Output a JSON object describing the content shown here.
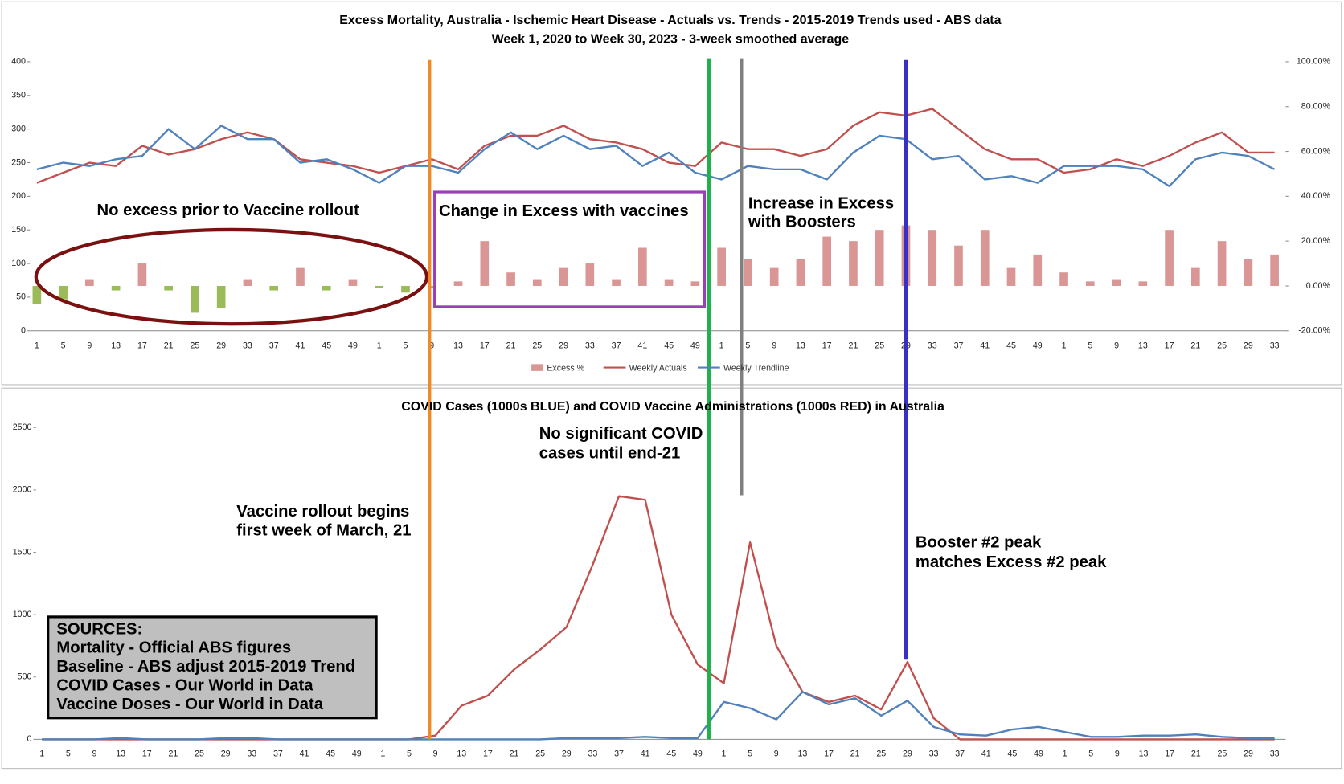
{
  "chart_data": [
    {
      "type": "combo",
      "title": [
        "Excess Mortality, Australia - Ischemic Heart Disease - Actuals vs. Trends - 2015-2019 Trends used - ABS data",
        "Week 1, 2020 to Week 30, 2023 - 3-week smoothed average"
      ],
      "categories": [
        "1",
        "5",
        "9",
        "13",
        "17",
        "21",
        "25",
        "29",
        "33",
        "37",
        "41",
        "45",
        "49",
        "1",
        "5",
        "9",
        "13",
        "17",
        "21",
        "25",
        "29",
        "33",
        "37",
        "41",
        "45",
        "49",
        "1",
        "5",
        "9",
        "13",
        "17",
        "21",
        "25",
        "29",
        "33",
        "37",
        "41",
        "45",
        "49",
        "1",
        "5",
        "9",
        "13",
        "17",
        "21",
        "25",
        "29",
        "33"
      ],
      "ylim": [
        0,
        400
      ],
      "yticks": [
        0,
        50,
        100,
        150,
        200,
        250,
        300,
        350,
        400
      ],
      "y2lim": [
        -20,
        100
      ],
      "y2ticks": [
        {
          "value": -20,
          "label": "-20.00%"
        },
        {
          "value": 0,
          "label": "0.00%"
        },
        {
          "value": 20,
          "label": "20.00%"
        },
        {
          "value": 40,
          "label": "40.00%"
        },
        {
          "value": 60,
          "label": "60.00%"
        },
        {
          "value": 80,
          "label": "80.00%"
        },
        {
          "value": 100,
          "label": "100.00%"
        }
      ],
      "series": [
        {
          "name": "Excess %",
          "type": "bar",
          "axis": "y2",
          "color": "#d99694",
          "negative_color": "#9bbb59",
          "values": [
            -8,
            -6,
            3,
            -2,
            10,
            -2,
            -12,
            -10,
            3,
            -2,
            8,
            -2,
            3,
            -1,
            -3,
            -1,
            2,
            20,
            6,
            3,
            8,
            10,
            3,
            17,
            3,
            2,
            17,
            12,
            8,
            12,
            22,
            20,
            25,
            27,
            25,
            18,
            25,
            8,
            14,
            6,
            2,
            3,
            2,
            25,
            8,
            20,
            12,
            14
          ]
        },
        {
          "name": "Weekly Actuals",
          "type": "line",
          "color": "#c0504d",
          "values": [
            220,
            235,
            250,
            245,
            275,
            262,
            270,
            285,
            295,
            285,
            255,
            250,
            245,
            235,
            245,
            255,
            240,
            275,
            290,
            290,
            305,
            285,
            280,
            270,
            250,
            245,
            280,
            270,
            270,
            260,
            270,
            305,
            325,
            320,
            330,
            300,
            270,
            255,
            255,
            235,
            240,
            255,
            245,
            260,
            280,
            295,
            265,
            265
          ]
        },
        {
          "name": "Weekly Trendline",
          "type": "line",
          "color": "#4f81bd",
          "values": [
            240,
            250,
            245,
            255,
            260,
            300,
            270,
            305,
            285,
            285,
            250,
            255,
            240,
            220,
            245,
            245,
            235,
            270,
            295,
            270,
            290,
            270,
            275,
            245,
            265,
            235,
            225,
            245,
            240,
            240,
            225,
            265,
            290,
            285,
            255,
            260,
            225,
            230,
            220,
            245,
            245,
            245,
            240,
            215,
            255,
            265,
            260,
            240
          ]
        }
      ],
      "annotations": [
        "No excess prior to Vaccine rollout",
        "Change in Excess with vaccines",
        "Increase in Excess",
        "with Boosters"
      ]
    },
    {
      "type": "line",
      "title": "COVID Cases (1000s BLUE) and COVID Vaccine Administrations (1000s RED) in Australia",
      "categories": [
        "1",
        "5",
        "9",
        "13",
        "17",
        "21",
        "25",
        "29",
        "33",
        "37",
        "41",
        "45",
        "49",
        "1",
        "5",
        "9",
        "13",
        "17",
        "21",
        "25",
        "29",
        "33",
        "37",
        "41",
        "45",
        "49",
        "1",
        "5",
        "9",
        "13",
        "17",
        "21",
        "25",
        "29",
        "33",
        "37",
        "41",
        "45",
        "49",
        "1",
        "5",
        "9",
        "13",
        "17",
        "21",
        "25",
        "29",
        "33"
      ],
      "ylim": [
        0,
        2500
      ],
      "yticks": [
        0,
        500,
        1000,
        1500,
        2000,
        2500
      ],
      "series": [
        {
          "color": "#c0504d",
          "values": [
            0,
            0,
            0,
            0,
            0,
            0,
            0,
            0,
            0,
            0,
            0,
            0,
            0,
            0,
            0,
            30,
            270,
            350,
            560,
            720,
            900,
            1400,
            1950,
            1920,
            1000,
            600,
            450,
            1580,
            750,
            380,
            300,
            350,
            240,
            620,
            170,
            0,
            0,
            0,
            0,
            0,
            0,
            0,
            0,
            0,
            0,
            0,
            0,
            0
          ]
        },
        {
          "color": "#4f81bd",
          "values": [
            0,
            0,
            0,
            10,
            0,
            0,
            0,
            10,
            10,
            0,
            0,
            0,
            0,
            0,
            0,
            0,
            0,
            0,
            0,
            0,
            10,
            10,
            10,
            20,
            10,
            10,
            300,
            250,
            160,
            380,
            280,
            330,
            190,
            310,
            100,
            40,
            30,
            80,
            100,
            60,
            20,
            20,
            30,
            30,
            40,
            20,
            10,
            10
          ]
        }
      ],
      "annotations": [
        "No significant COVID",
        "cases until end-21",
        "Vaccine rollout begins",
        "first week of March, 21",
        "Booster #2 peak",
        "matches Excess #2 peak"
      ],
      "sources_box": [
        "SOURCES:",
        "Mortality - Official ABS figures",
        "Baseline - ABS adjust 2015-2019 Trend",
        "COVID Cases - Our World in Data",
        "Vaccine Doses - Our World in Data"
      ]
    }
  ]
}
